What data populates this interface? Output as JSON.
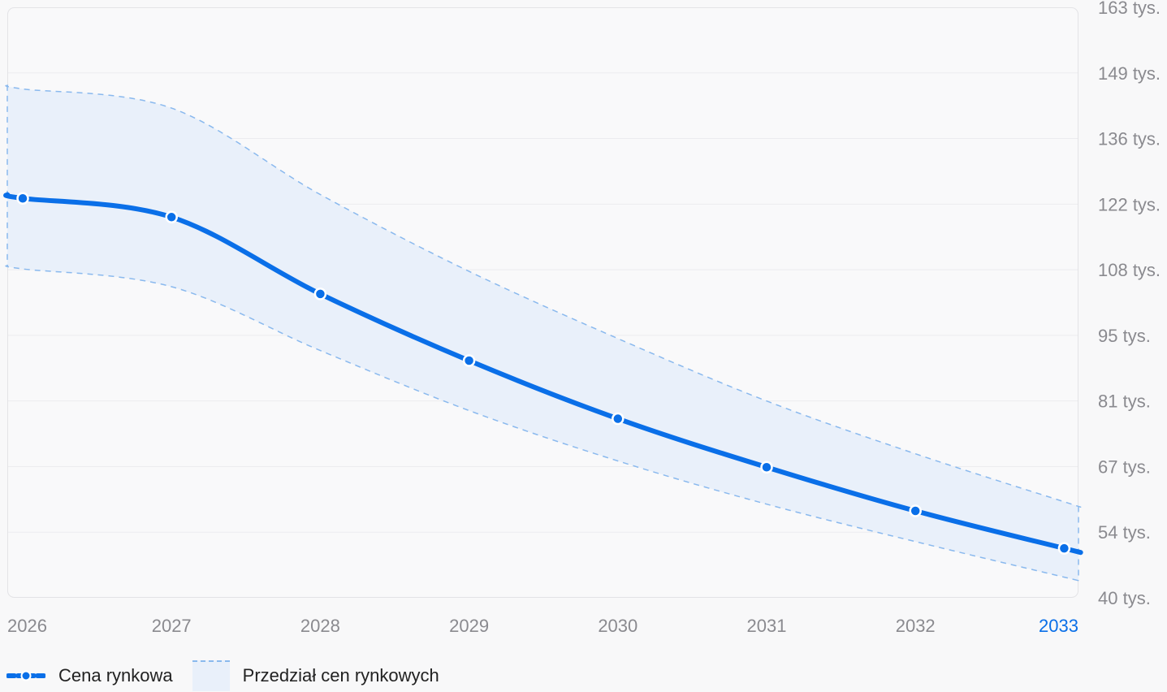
{
  "chart_data": {
    "type": "line",
    "x": [
      "2026",
      "2027",
      "2028",
      "2029",
      "2030",
      "2031",
      "2032",
      "2033"
    ],
    "highlighted_x": "2033",
    "y_ticks": [
      "163 tys.",
      "149 tys.",
      "136 tys.",
      "122 tys.",
      "108 tys.",
      "95 tys.",
      "81 tys.",
      "67 tys.",
      "54 tys.",
      "40 tys."
    ],
    "ylim": [
      40000,
      163000
    ],
    "series": [
      {
        "name": "Cena rynkowa",
        "color": "#0a6fe8",
        "values": [
          123200,
          119300,
          103300,
          89400,
          77300,
          67200,
          58100,
          50300
        ]
      }
    ],
    "band": {
      "name": "Przedział cen rynkowych",
      "fill": "#e9f0fa",
      "stroke": "#8ab9ee",
      "upper": [
        146000,
        142000,
        124000,
        108000,
        94000,
        81000,
        70000,
        60000
      ],
      "lower": [
        108500,
        104800,
        91500,
        79000,
        68500,
        59500,
        51700,
        44300
      ]
    },
    "grid": true,
    "legend": "bottom-left"
  },
  "legend": {
    "line_label": "Cena rynkowa",
    "band_label": "Przedział cen rynkowych"
  }
}
